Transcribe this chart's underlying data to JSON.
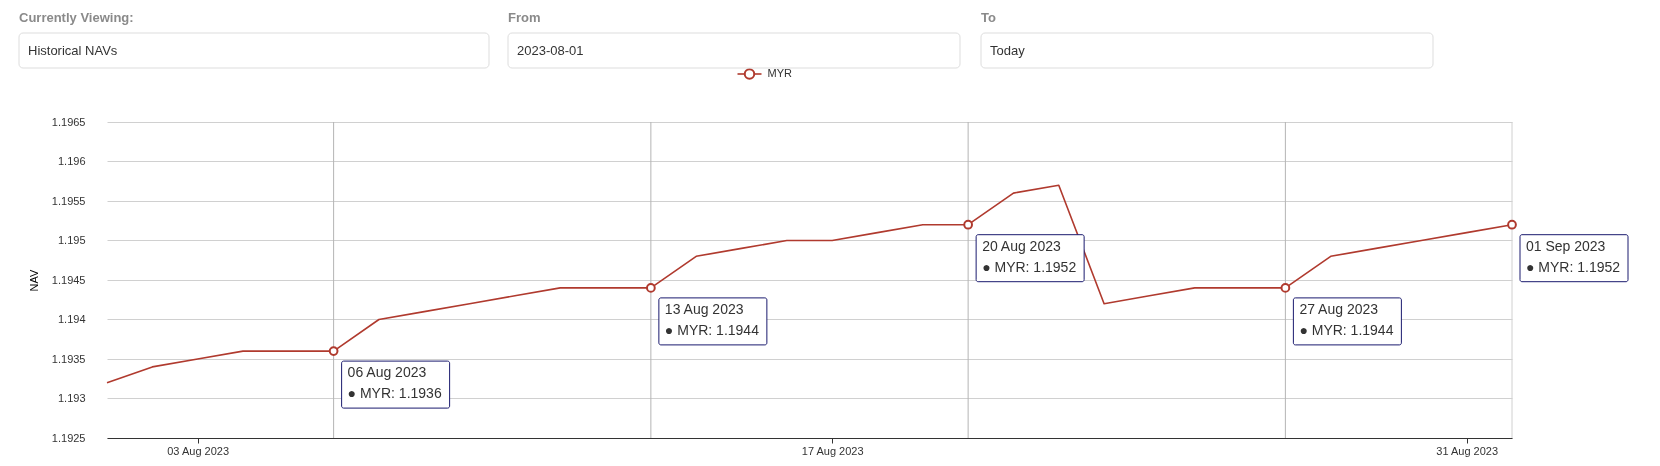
{
  "chart_data": {
    "type": "line",
    "ylabel": "NAV",
    "x": [
      "2023-08-01",
      "2023-08-02",
      "2023-08-03",
      "2023-08-04",
      "2023-08-05",
      "2023-08-06",
      "2023-08-07",
      "2023-08-08",
      "2023-08-09",
      "2023-08-10",
      "2023-08-11",
      "2023-08-12",
      "2023-08-13",
      "2023-08-14",
      "2023-08-15",
      "2023-08-16",
      "2023-08-17",
      "2023-08-18",
      "2023-08-19",
      "2023-08-20",
      "2023-08-21",
      "2023-08-22",
      "2023-08-23",
      "2023-08-24",
      "2023-08-25",
      "2023-08-26",
      "2023-08-27",
      "2023-08-28",
      "2023-08-29",
      "2023-08-30",
      "2023-08-31",
      "2023-09-01"
    ],
    "series": [
      {
        "name": "MYR",
        "color": "#b03a2e",
        "values": [
          1.1932,
          1.1934,
          1.1935,
          1.1936,
          1.1936,
          1.1936,
          1.194,
          1.1941,
          1.1942,
          1.1943,
          1.1944,
          1.1944,
          1.1944,
          1.1948,
          1.1949,
          1.195,
          1.195,
          1.1951,
          1.1952,
          1.1952,
          1.1956,
          1.1957,
          1.1942,
          1.1943,
          1.1944,
          1.1944,
          1.1944,
          1.1948,
          1.1949,
          1.195,
          1.1951,
          1.1952
        ]
      }
    ],
    "xlim": [
      "2023-08-01",
      "2023-09-01"
    ],
    "xticks": [
      {
        "value": "2023-08-03",
        "label": "03 Aug 2023"
      },
      {
        "value": "2023-08-17",
        "label": "17 Aug 2023"
      },
      {
        "value": "2023-08-31",
        "label": "31 Aug 2023"
      }
    ],
    "ylim": [
      1.1925,
      1.1965
    ],
    "yticks": [
      1.1925,
      1.193,
      1.1935,
      1.194,
      1.1945,
      1.195,
      1.1955,
      1.196,
      1.1965
    ],
    "grid": "y",
    "legend": "top",
    "marker": "none",
    "line_style": "solid",
    "ref_lines": [
      {
        "axis": "x",
        "value": "2023-08-06",
        "color": "#b4b4b4"
      },
      {
        "axis": "x",
        "value": "2023-08-13",
        "color": "#b4b4b4"
      },
      {
        "axis": "x",
        "value": "2023-08-20",
        "color": "#b4b4b4"
      },
      {
        "axis": "x",
        "value": "2023-08-27",
        "color": "#b4b4b4"
      }
    ],
    "annotations": [
      {
        "text": "06 Aug 2023\n● MYR: 1.1936",
        "x": "2023-08-06",
        "y": 1.1936
      },
      {
        "text": "13 Aug 2023\n● MYR: 1.1944",
        "x": "2023-08-13",
        "y": 1.1944
      },
      {
        "text": "20 Aug 2023\n● MYR: 1.1952",
        "x": "2023-08-20",
        "y": 1.1952
      },
      {
        "text": "27 Aug 2023\n● MYR: 1.1944",
        "x": "2023-08-27",
        "y": 1.1944
      },
      {
        "text": "01 Sep 2023\n● MYR: 1.1952",
        "x": "2023-09-01",
        "y": 1.1952
      },
      "Currently Viewing:",
      "Historical NAVs",
      "From",
      "2023-08-01",
      "To",
      "Today"
    ]
  }
}
